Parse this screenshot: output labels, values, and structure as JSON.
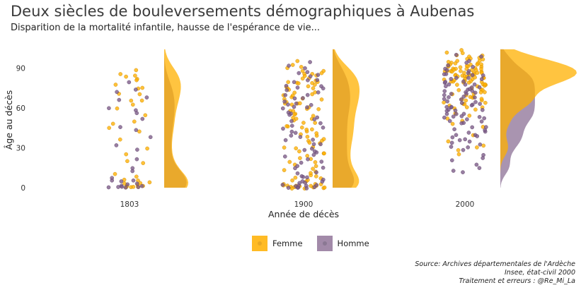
{
  "title": "Deux siècles de bouleversements démographiques à Aubenas",
  "subtitle": "Disparition de la mortalité infantile, hausse de l'espérance de vie...",
  "caption": [
    "Source: Archives départementales de l'Ardèche",
    "Insee, état-civil 2000",
    "Traitement et erreurs : @Re_Mi_La"
  ],
  "colors": {
    "femme": "#FFB000",
    "homme": "#7B5A86",
    "overlap": "#A6716A"
  },
  "chart_data": {
    "type": "scatter",
    "subtype": "raincloud (jittered points + half-violin density)",
    "xlabel": "Année de décès",
    "ylabel": "Âge au décès",
    "categories": [
      "1803",
      "1900",
      "2000"
    ],
    "yticks": [
      0,
      30,
      60,
      90
    ],
    "ylim": [
      -3,
      105
    ],
    "grid": false,
    "legend_position": "bottom",
    "legend": [
      "Femme",
      "Homme"
    ],
    "series": [
      {
        "name": "Femme",
        "points": {
          "1803": [
            88,
            85,
            82,
            78,
            75,
            70,
            65,
            62,
            60,
            55,
            48,
            42,
            36,
            30,
            25,
            18,
            10,
            6,
            4,
            3,
            2,
            1,
            1,
            0,
            0,
            2,
            5,
            3,
            1,
            0,
            70,
            80,
            85,
            83,
            75,
            66,
            50,
            45,
            20,
            8
          ],
          "1900": [
            95,
            92,
            90,
            88,
            86,
            84,
            82,
            80,
            78,
            76,
            75,
            74,
            72,
            70,
            68,
            66,
            65,
            64,
            62,
            60,
            58,
            56,
            55,
            54,
            52,
            50,
            48,
            46,
            45,
            44,
            42,
            40,
            38,
            36,
            35,
            33,
            30,
            28,
            25,
            22,
            20,
            18,
            15,
            12,
            10,
            8,
            6,
            4,
            3,
            2,
            1,
            1,
            0,
            0,
            0,
            1,
            2,
            3,
            85,
            80,
            77,
            73,
            69,
            67,
            63,
            61,
            57,
            53,
            49,
            43,
            39,
            34,
            29,
            24,
            19,
            14,
            9,
            5,
            2,
            1,
            0,
            88,
            84,
            79,
            71,
            66,
            59,
            51,
            47,
            41,
            37,
            31,
            26,
            21,
            16,
            11,
            7,
            3,
            1,
            0,
            90,
            86,
            83,
            81,
            78,
            74,
            70,
            64
          ],
          "2000": [
            104,
            102,
            101,
            100,
            99,
            98,
            97,
            96,
            95,
            95,
            94,
            94,
            93,
            93,
            92,
            92,
            91,
            91,
            90,
            90,
            89,
            89,
            88,
            88,
            87,
            87,
            86,
            86,
            85,
            85,
            84,
            84,
            83,
            83,
            82,
            82,
            81,
            81,
            80,
            80,
            79,
            78,
            77,
            76,
            75,
            74,
            73,
            72,
            71,
            70,
            69,
            68,
            67,
            66,
            65,
            64,
            63,
            62,
            61,
            60,
            58,
            56,
            54,
            52,
            50,
            48,
            45,
            40,
            35,
            32,
            30,
            28,
            25,
            97,
            96,
            93,
            92,
            90,
            89,
            88,
            87,
            86,
            85,
            84,
            83,
            82,
            80,
            79,
            78,
            76,
            74,
            72,
            70,
            68,
            66,
            64,
            62,
            60,
            95,
            94,
            91,
            90,
            88,
            87,
            86,
            84,
            83,
            81,
            79,
            77
          ]
        },
        "density_peak_ages": {
          "1803": [
            2,
            70
          ],
          "1900": [
            2,
            78
          ],
          "2000": [
            90
          ]
        }
      },
      {
        "name": "Homme",
        "points": {
          "1803": [
            80,
            72,
            68,
            60,
            58,
            52,
            46,
            38,
            32,
            22,
            15,
            8,
            5,
            3,
            2,
            1,
            0,
            0,
            1,
            2,
            6,
            4,
            66,
            74,
            56,
            44,
            28,
            12,
            3,
            1
          ],
          "1900": [
            94,
            91,
            87,
            83,
            79,
            76,
            73,
            71,
            68,
            65,
            62,
            59,
            56,
            53,
            50,
            47,
            44,
            41,
            38,
            35,
            32,
            29,
            26,
            23,
            20,
            17,
            14,
            11,
            8,
            5,
            3,
            2,
            1,
            0,
            0,
            1,
            2,
            4,
            6,
            86,
            81,
            77,
            74,
            70,
            67,
            63,
            60,
            57,
            54,
            51,
            48,
            45,
            42,
            39,
            36,
            33,
            30,
            27,
            24,
            21,
            18,
            15,
            12,
            9,
            7,
            4,
            2,
            1,
            0,
            0,
            89,
            84,
            80,
            75,
            69,
            64,
            61
          ],
          "2000": [
            100,
            98,
            96,
            94,
            92,
            90,
            88,
            86,
            85,
            84,
            83,
            82,
            81,
            80,
            79,
            78,
            77,
            76,
            75,
            74,
            73,
            72,
            71,
            70,
            69,
            68,
            67,
            66,
            65,
            64,
            63,
            62,
            61,
            60,
            59,
            58,
            57,
            56,
            55,
            54,
            53,
            52,
            51,
            50,
            48,
            46,
            44,
            42,
            40,
            38,
            36,
            34,
            32,
            30,
            28,
            25,
            22,
            20,
            18,
            15,
            13,
            12,
            90,
            88,
            86,
            84,
            82,
            80,
            78,
            76,
            74,
            72,
            70,
            68,
            66,
            64,
            62,
            60,
            58,
            56,
            54,
            52,
            50,
            48,
            46,
            44,
            42,
            40,
            38,
            36,
            34,
            30
          ]
        },
        "density_peak_ages": {
          "1803": [
            2,
            65
          ],
          "1900": [
            2,
            72
          ],
          "2000": [
            80
          ]
        }
      }
    ]
  }
}
